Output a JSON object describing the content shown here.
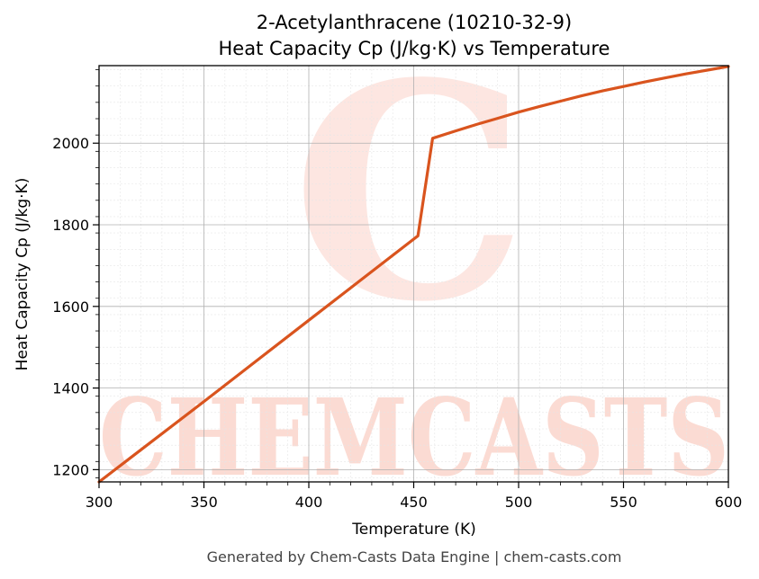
{
  "chart_data": {
    "type": "line",
    "title_line1": "2-Acetylanthracene (10210-32-9)",
    "title_line2": "Heat Capacity Cp (J/kg·K) vs Temperature",
    "xlabel": "Temperature (K)",
    "ylabel": "Heat Capacity Cp (J/kg·K)",
    "xlim": [
      300,
      600
    ],
    "ylim": [
      1170,
      2190
    ],
    "xticks": [
      300,
      350,
      400,
      450,
      500,
      550,
      600
    ],
    "yticks": [
      1200,
      1400,
      1600,
      1800,
      2000
    ],
    "grid": true,
    "series": [
      {
        "color": "#d9541e",
        "x": [
          300,
          350,
          400,
          452,
          459,
          470,
          480,
          490,
          500,
          510,
          520,
          530,
          540,
          550,
          560,
          570,
          580,
          590,
          600
        ],
        "y": [
          1170,
          1367,
          1566,
          1773,
          2012,
          2030,
          2046,
          2061,
          2076,
          2090,
          2103,
          2116,
          2128,
          2139,
          2150,
          2160,
          2170,
          2179,
          2188
        ]
      }
    ]
  },
  "watermark": {
    "text": "CHEMCASTS",
    "letter": "C",
    "color": "#fbd5cc"
  },
  "footer": "Generated by Chem-Casts Data Engine | chem-casts.com"
}
